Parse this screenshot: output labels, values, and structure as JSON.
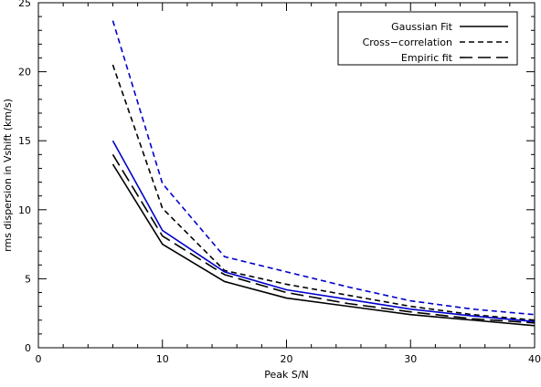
{
  "chart_data": {
    "type": "line",
    "title": "",
    "xlabel": "Peak S/N",
    "ylabel": "rms dispersion in Vshift (km/s)",
    "xlim": [
      0,
      40
    ],
    "ylim": [
      0,
      25
    ],
    "x_ticks": [
      0,
      10,
      20,
      30,
      40
    ],
    "y_ticks": [
      0,
      5,
      10,
      15,
      20,
      25
    ],
    "grid": false,
    "legend_position": "top-right",
    "legend": [
      {
        "label": "Gaussian Fit",
        "style": "solid"
      },
      {
        "label": "Cross−correlation",
        "style": "dashed"
      },
      {
        "label": "Empiric fit",
        "style": "long-dashed"
      }
    ],
    "series": [
      {
        "style": "solid",
        "color": "#000000",
        "x": [
          6,
          10,
          15,
          20,
          25,
          30,
          35,
          40
        ],
        "y": [
          13.3,
          7.5,
          4.8,
          3.6,
          3.0,
          2.4,
          2.0,
          1.6
        ]
      },
      {
        "style": "long-dashed",
        "color": "#000000",
        "x": [
          6,
          10,
          15,
          20,
          25,
          30,
          35,
          40
        ],
        "y": [
          14.0,
          8.1,
          5.3,
          4.0,
          3.2,
          2.6,
          2.1,
          1.8
        ]
      },
      {
        "style": "dashed",
        "color": "#000000",
        "x": [
          6,
          10,
          15,
          20,
          25,
          30,
          35,
          40
        ],
        "y": [
          20.5,
          10.1,
          5.6,
          4.6,
          3.8,
          3.0,
          2.4,
          2.0
        ]
      },
      {
        "style": "solid",
        "color": "#0000cc",
        "x": [
          6,
          10,
          15,
          20,
          25,
          30,
          35,
          40
        ],
        "y": [
          15.0,
          8.5,
          5.5,
          4.2,
          3.5,
          2.8,
          2.3,
          1.9
        ]
      },
      {
        "style": "dashed",
        "color": "#0000cc",
        "x": [
          6,
          10,
          15,
          20,
          25,
          30,
          35,
          40
        ],
        "y": [
          23.7,
          11.9,
          6.6,
          5.5,
          4.4,
          3.4,
          2.8,
          2.4
        ]
      }
    ]
  }
}
